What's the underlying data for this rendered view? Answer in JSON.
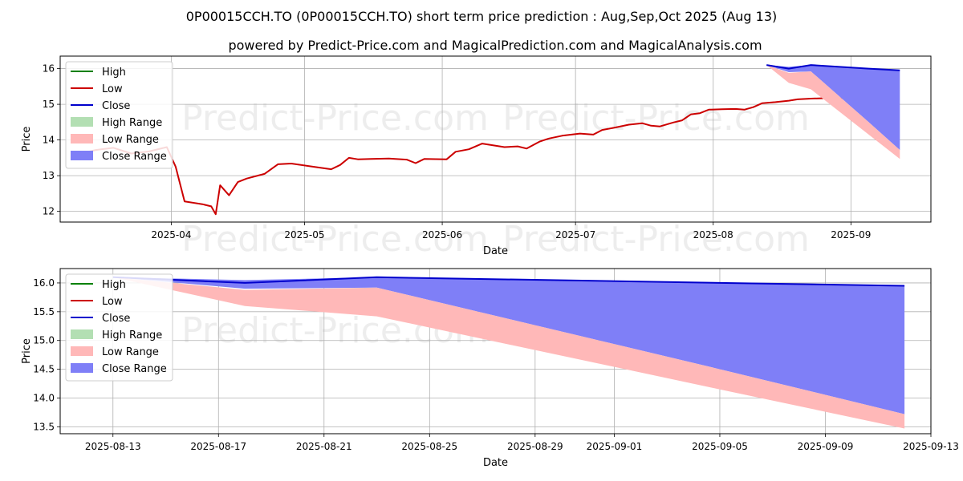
{
  "header": {
    "title": "0P00015CCH.TO (0P00015CCH.TO) short term price prediction : Aug,Sep,Oct 2025 (Aug 13)",
    "subtitle": "powered by Predict-Price.com and MagicalPrediction.com and MagicalAnalysis.com"
  },
  "watermark": "Predict-Price.com",
  "colors": {
    "high": "#008000",
    "low": "#cc0000",
    "close": "#0000cc",
    "high_range": "#b3dfb3",
    "low_range": "#ffb8b8",
    "close_range": "#7f7ff7"
  },
  "legend": [
    "High",
    "Low",
    "Close",
    "High Range",
    "Low Range",
    "Close Range"
  ],
  "chart_data": [
    {
      "type": "line",
      "xlabel": "Date",
      "ylabel": "Price",
      "xlim": [
        "2025-03-07",
        "2025-09-19"
      ],
      "ylim": [
        11.7,
        16.35
      ],
      "x_ticks": [
        "2025-04-01",
        "2025-05-01",
        "2025-06-01",
        "2025-07-01",
        "2025-08-01",
        "2025-09-01"
      ],
      "x_tick_labels": [
        "2025-04",
        "2025-05",
        "2025-06",
        "2025-07",
        "2025-08",
        "2025-09"
      ],
      "y_ticks": [
        12,
        13,
        14,
        15,
        16
      ],
      "legend_position": "top-left",
      "grid": true,
      "series": [
        {
          "name": "Low",
          "points": [
            [
              "2025-03-11",
              13.6
            ],
            [
              "2025-03-15",
              13.72
            ],
            [
              "2025-03-19",
              13.78
            ],
            [
              "2025-03-23",
              13.62
            ],
            [
              "2025-03-27",
              13.68
            ],
            [
              "2025-03-31",
              13.8
            ],
            [
              "2025-04-02",
              13.25
            ],
            [
              "2025-04-04",
              12.28
            ],
            [
              "2025-04-08",
              12.2
            ],
            [
              "2025-04-10",
              12.14
            ],
            [
              "2025-04-11",
              11.92
            ],
            [
              "2025-04-12",
              12.73
            ],
            [
              "2025-04-14",
              12.45
            ],
            [
              "2025-04-16",
              12.82
            ],
            [
              "2025-04-18",
              12.92
            ],
            [
              "2025-04-22",
              13.05
            ],
            [
              "2025-04-25",
              13.32
            ],
            [
              "2025-04-28",
              13.34
            ],
            [
              "2025-05-03",
              13.25
            ],
            [
              "2025-05-07",
              13.18
            ],
            [
              "2025-05-09",
              13.3
            ],
            [
              "2025-05-11",
              13.5
            ],
            [
              "2025-05-13",
              13.46
            ],
            [
              "2025-05-16",
              13.47
            ],
            [
              "2025-05-20",
              13.48
            ],
            [
              "2025-05-24",
              13.45
            ],
            [
              "2025-05-26",
              13.35
            ],
            [
              "2025-05-28",
              13.47
            ],
            [
              "2025-06-02",
              13.46
            ],
            [
              "2025-06-04",
              13.67
            ],
            [
              "2025-06-07",
              13.74
            ],
            [
              "2025-06-10",
              13.9
            ],
            [
              "2025-06-13",
              13.84
            ],
            [
              "2025-06-15",
              13.8
            ],
            [
              "2025-06-18",
              13.82
            ],
            [
              "2025-06-20",
              13.76
            ],
            [
              "2025-06-23",
              13.96
            ],
            [
              "2025-06-25",
              14.04
            ],
            [
              "2025-06-28",
              14.12
            ],
            [
              "2025-07-02",
              14.18
            ],
            [
              "2025-07-05",
              14.15
            ],
            [
              "2025-07-07",
              14.28
            ],
            [
              "2025-07-10",
              14.35
            ],
            [
              "2025-07-13",
              14.43
            ],
            [
              "2025-07-16",
              14.47
            ],
            [
              "2025-07-18",
              14.4
            ],
            [
              "2025-07-20",
              14.38
            ],
            [
              "2025-07-23",
              14.49
            ],
            [
              "2025-07-25",
              14.55
            ],
            [
              "2025-07-27",
              14.72
            ],
            [
              "2025-07-29",
              14.75
            ],
            [
              "2025-07-31",
              14.85
            ],
            [
              "2025-08-03",
              14.86
            ],
            [
              "2025-08-06",
              14.87
            ],
            [
              "2025-08-08",
              14.85
            ],
            [
              "2025-08-10",
              14.92
            ],
            [
              "2025-08-12",
              15.03
            ],
            [
              "2025-08-15",
              15.06
            ],
            [
              "2025-08-18",
              15.1
            ],
            [
              "2025-08-20",
              15.14
            ],
            [
              "2025-08-23",
              15.16
            ],
            [
              "2025-08-26",
              15.17
            ],
            [
              "2025-08-29",
              15.16
            ],
            [
              "2025-08-31",
              15.18
            ],
            [
              "2025-09-03",
              15.14
            ],
            [
              "2025-09-05",
              15.3
            ],
            [
              "2025-09-07",
              15.2
            ],
            [
              "2025-09-10",
              15.28
            ]
          ]
        }
      ]
    },
    {
      "type": "area",
      "xlabel": "Date",
      "ylabel": "Price",
      "xlim": [
        "2025-08-11",
        "2025-09-13"
      ],
      "ylim": [
        13.38,
        16.25
      ],
      "x_ticks": [
        "2025-08-13",
        "2025-08-17",
        "2025-08-21",
        "2025-08-25",
        "2025-08-29",
        "2025-09-01",
        "2025-09-05",
        "2025-09-09",
        "2025-09-13"
      ],
      "y_ticks": [
        13.5,
        14.0,
        14.5,
        15.0,
        15.5,
        16.0
      ],
      "legend_position": "top-left",
      "grid": true,
      "series": [
        {
          "name": "Close",
          "points": [
            [
              "2025-08-13",
              16.1
            ],
            [
              "2025-08-18",
              16.0
            ],
            [
              "2025-08-23",
              16.1
            ],
            [
              "2025-09-05",
              16.0
            ],
            [
              "2025-09-12",
              15.95
            ]
          ]
        },
        {
          "name": "Close Range",
          "points": [
            [
              "2025-08-13",
              16.1,
              16.1
            ],
            [
              "2025-08-18",
              15.9,
              16.05
            ],
            [
              "2025-08-23",
              15.92,
              16.1
            ],
            [
              "2025-09-05",
              14.5,
              16.0
            ],
            [
              "2025-09-12",
              13.72,
              15.95
            ]
          ]
        },
        {
          "name": "Low Range",
          "points": [
            [
              "2025-08-13",
              16.1,
              16.1
            ],
            [
              "2025-08-18",
              15.6,
              15.88
            ],
            [
              "2025-08-23",
              15.42,
              15.92
            ],
            [
              "2025-09-05",
              14.15,
              14.5
            ],
            [
              "2025-09-12",
              13.47,
              13.72
            ]
          ]
        }
      ]
    }
  ]
}
